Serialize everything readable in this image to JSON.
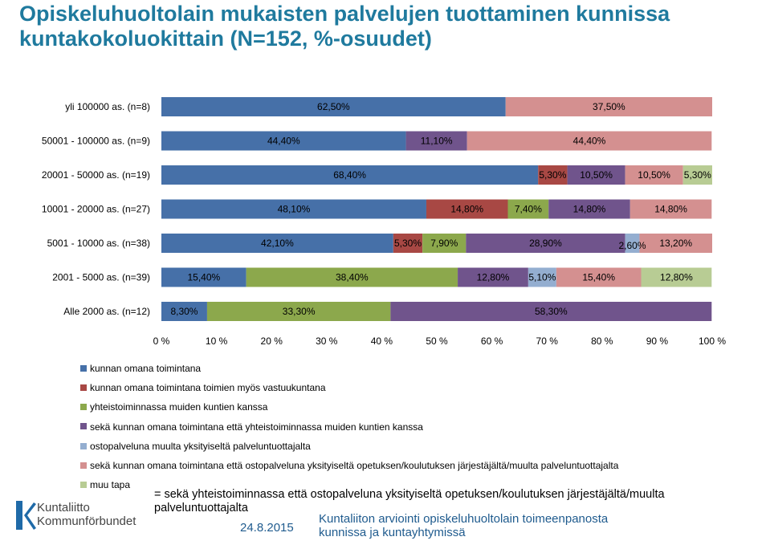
{
  "header": {
    "title": "Opiskeluhuoltolain mukaisten palvelujen tuottaminen kunnissa kuntakokoluokittain (N=152, %-osuudet)"
  },
  "colors": {
    "kunnan_omana": "#4670a8",
    "vastuukuntana": "#a84844",
    "yhteistoiminnassa": "#8ca84c",
    "seka_yhteis": "#70548c",
    "ostopalveluna": "#94aed0",
    "seka_osto": "#d49090",
    "muu": "#b8cc94",
    "title": "#1f7a9e"
  },
  "chart_data": {
    "type": "bar",
    "orientation": "horizontal",
    "stacking": "percent",
    "categories": [
      "yli 100000 as. (n=8)",
      "50001 - 100000 as. (n=9)",
      "20001 - 50000 as. (n=19)",
      "10001 - 20000 as. (n=27)",
      "5001 - 10000 as. (n=38)",
      "2001 - 5000 as. (n=39)",
      "Alle 2000 as. (n=12)"
    ],
    "series": [
      {
        "name": "kunnan omana toimintana",
        "color": "#4670a8",
        "values": [
          62.5,
          44.4,
          68.4,
          48.1,
          42.1,
          15.4,
          8.3
        ]
      },
      {
        "name": "kunnan omana toimintana toimien myös vastuukuntana",
        "color": "#a84844",
        "values": [
          0,
          0,
          5.3,
          14.8,
          5.3,
          0,
          0
        ]
      },
      {
        "name": "yhteistoiminnassa muiden kuntien kanssa",
        "color": "#8ca84c",
        "values": [
          0,
          0,
          0,
          7.4,
          7.9,
          38.4,
          33.3
        ]
      },
      {
        "name": "sekä kunnan omana toimintana että yhteistoiminnassa muiden kuntien kanssa",
        "color": "#70548c",
        "values": [
          0,
          11.1,
          10.5,
          14.8,
          28.9,
          12.8,
          58.3
        ]
      },
      {
        "name": "ostopalveluna muulta yksityiseltä palveluntuottajalta",
        "color": "#94aed0",
        "values": [
          0,
          0,
          0,
          0,
          2.6,
          5.1,
          0
        ]
      },
      {
        "name": "sekä kunnan omana toimintana että ostopalveluna yksityiseltä opetuksen/koulutuksen järjestäjältä/muulta palveluntuottajalta",
        "color": "#d49090",
        "values": [
          37.5,
          44.4,
          10.5,
          14.8,
          13.2,
          15.4,
          0
        ]
      },
      {
        "name": "muu tapa",
        "color": "#b8cc94",
        "values": [
          0,
          0,
          5.3,
          0,
          0,
          12.8,
          0
        ]
      }
    ],
    "data_labels": [
      [
        "62,50%",
        "",
        "",
        "",
        "",
        "37,50%",
        ""
      ],
      [
        "44,40%",
        "",
        "",
        "11,10%",
        "",
        "44,40%",
        ""
      ],
      [
        "68,40%",
        "5,30%",
        "",
        "10,50%",
        "",
        "10,50%",
        "5,30%"
      ],
      [
        "48,10%",
        "14,80%",
        "7,40%",
        "14,80%",
        "",
        "14,80%",
        ""
      ],
      [
        "42,10%",
        "5,30%",
        "7,90%",
        "28,90%",
        "2,60%",
        "13,20%",
        ""
      ],
      [
        "15,40%",
        "",
        "38,40%",
        "12,80%",
        "5,10%",
        "15,40%",
        "12,80%"
      ],
      [
        "8,30%",
        "",
        "33,30%",
        "58,30%",
        "",
        "",
        ""
      ]
    ],
    "x_ticks": [
      "0 %",
      "10 %",
      "20 %",
      "30 %",
      "40 %",
      "50 %",
      "60 %",
      "70 %",
      "80 %",
      "90 %",
      "100 %"
    ],
    "xlim": [
      0,
      100
    ],
    "grid": false,
    "legend_position": "bottom-left"
  },
  "footnote": "= sekä yhteistoiminnassa että ostopalveluna yksityiseltä opetuksen/koulutuksen järjestäjältä/muulta palveluntuottajalta",
  "footer": {
    "logo_line1": "Kuntaliitto",
    "logo_line2": "Kommunförbundet",
    "date": "24.8.2015",
    "source": "Kuntaliiton arviointi opiskeluhuoltolain toimeenpanosta kunnissa ja kuntayhtymissä"
  }
}
